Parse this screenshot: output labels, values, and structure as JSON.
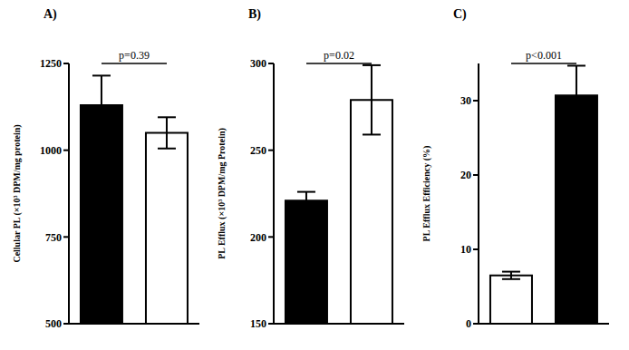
{
  "chart_data": [
    {
      "type": "bar",
      "title": "A)",
      "y_label": "Cellular PL (×10³ DPM/mg protein)",
      "categories": [
        null,
        null
      ],
      "values": [
        1130,
        1050
      ],
      "errors": [
        85,
        45
      ],
      "colors": [
        "#000000",
        "#ffffff"
      ],
      "ylim": [
        500,
        1250
      ],
      "yticks": [
        500,
        750,
        1000,
        1250
      ],
      "annotation": "p=0.39",
      "tick_labels": "y"
    },
    {
      "type": "bar",
      "title": "B)",
      "y_label": "PL Efflux (×10³ DPM/mg Protein)",
      "categories": [
        null,
        null
      ],
      "values": [
        221,
        279
      ],
      "errors": [
        5,
        20
      ],
      "colors": [
        "#000000",
        "#ffffff"
      ],
      "ylim": [
        150,
        300
      ],
      "yticks": [
        150,
        200,
        250,
        300
      ],
      "annotation": "p=0.02",
      "tick_labels": "y"
    },
    {
      "type": "bar",
      "title": "C)",
      "y_label": "PL Efflux Efficiency (%)",
      "categories": [
        null,
        null
      ],
      "values": [
        6.5,
        30.7
      ],
      "errors": [
        0.5,
        4
      ],
      "colors": [
        "#ffffff",
        "#000000"
      ],
      "ylim": [
        0,
        35
      ],
      "yticks": [
        0,
        10,
        20,
        30
      ],
      "annotation": "p<0.001",
      "tick_labels": "y"
    }
  ]
}
